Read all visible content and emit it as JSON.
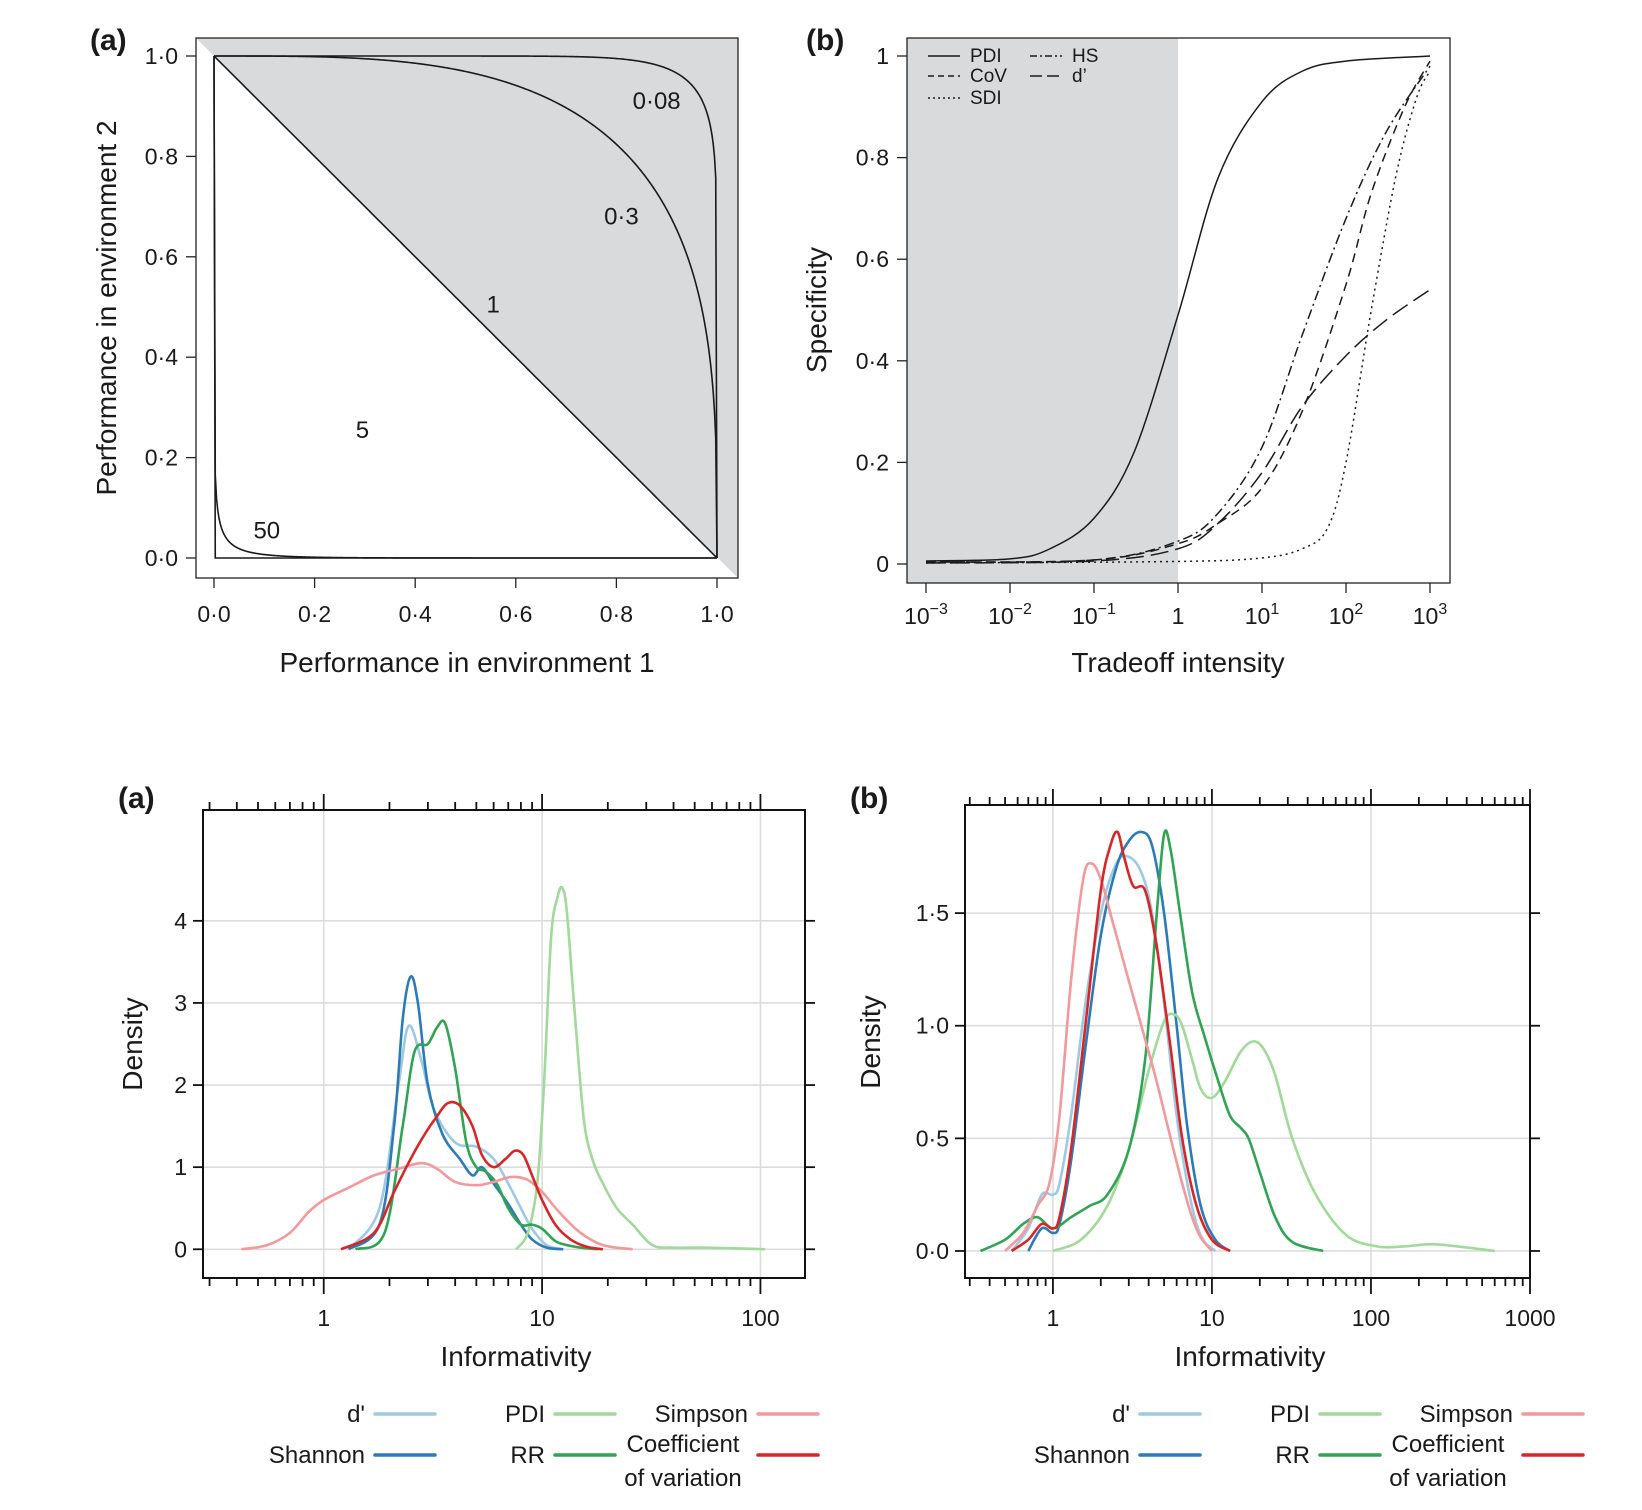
{
  "chart_data": [
    {
      "panel_label": "(a)",
      "type": "line",
      "xlabel": "Performance in environment 1",
      "ylabel": "Performance in environment 2",
      "xlim": [
        0,
        1
      ],
      "ylim": [
        0,
        1
      ],
      "xticks": [
        "0·0",
        "0·2",
        "0·4",
        "0·6",
        "0·8",
        "1·0"
      ],
      "yticks": [
        "0·0",
        "0·2",
        "0·4",
        "0·6",
        "0·8",
        "1·0"
      ],
      "shaded_region": "above the 1:1 diagonal",
      "shade_color": "#d9dadc",
      "curves": [
        {
          "label": "0·08",
          "exponent": 0.08,
          "label_at": [
            0.88,
            0.91
          ]
        },
        {
          "label": "0·3",
          "exponent": 0.3,
          "label_at": [
            0.81,
            0.68
          ]
        },
        {
          "label": "1",
          "exponent": 1,
          "label_at": [
            0.555,
            0.505
          ]
        },
        {
          "label": "5",
          "exponent": 5,
          "label_at": [
            0.295,
            0.255
          ]
        },
        {
          "label": "50",
          "exponent": 50,
          "label_at": [
            0.105,
            0.055
          ]
        }
      ]
    },
    {
      "panel_label": "(b)",
      "type": "line",
      "xlabel": "Tradeoff intensity",
      "ylabel": "Specificity",
      "xscale": "log",
      "xlim": [
        0.001,
        1000
      ],
      "ylim": [
        0,
        1
      ],
      "xticks": [
        {
          "base": "10",
          "exp": "−3"
        },
        {
          "base": "10",
          "exp": "−2"
        },
        {
          "base": "10",
          "exp": "−1"
        },
        {
          "base": "1",
          "exp": ""
        },
        {
          "base": "10",
          "exp": "1"
        },
        {
          "base": "10",
          "exp": "2"
        },
        {
          "base": "10",
          "exp": "3"
        }
      ],
      "yticks": [
        "0",
        "0·2",
        "0·4",
        "0·6",
        "0·8",
        "1"
      ],
      "shaded_region": "tradeoff intensity below 1",
      "shade_color": "#d9dadc",
      "legend_position": "top-left",
      "series": [
        {
          "name": "PDI",
          "dash": "solid",
          "x": [
            0.001,
            0.01,
            0.03,
            0.1,
            0.3,
            1,
            3,
            10,
            30,
            100,
            1000
          ],
          "y": [
            0.006,
            0.01,
            0.03,
            0.09,
            0.22,
            0.49,
            0.76,
            0.91,
            0.97,
            0.99,
            1.0
          ]
        },
        {
          "name": "CoV",
          "dash": "dashed",
          "x": [
            0.001,
            0.1,
            1,
            3,
            10,
            30,
            100,
            200,
            500,
            1000
          ],
          "y": [
            0.004,
            0.008,
            0.04,
            0.08,
            0.15,
            0.3,
            0.55,
            0.73,
            0.9,
            0.99
          ]
        },
        {
          "name": "SDI",
          "dash": "dotted",
          "x": [
            0.001,
            1,
            10,
            30,
            60,
            100,
            200,
            400,
            700,
            1000
          ],
          "y": [
            0.002,
            0.005,
            0.012,
            0.03,
            0.07,
            0.2,
            0.5,
            0.77,
            0.92,
            0.97
          ]
        },
        {
          "name": "HS",
          "dash": "dash-dot",
          "x": [
            0.001,
            0.1,
            1,
            3,
            10,
            30,
            100,
            300,
            1000
          ],
          "y": [
            0.004,
            0.008,
            0.045,
            0.1,
            0.23,
            0.45,
            0.68,
            0.85,
            0.98
          ]
        },
        {
          "name": "d’",
          "dash": "long-dash",
          "x": [
            0.001,
            0.1,
            1,
            3,
            10,
            30,
            100,
            300,
            1000
          ],
          "y": [
            0.002,
            0.006,
            0.03,
            0.08,
            0.18,
            0.31,
            0.41,
            0.48,
            0.54
          ]
        }
      ]
    },
    {
      "panel_label": "(a)",
      "type": "line",
      "xlabel": "Informativity",
      "ylabel": "Density",
      "xscale": "log",
      "xlim": [
        0.28,
        160
      ],
      "ylim": [
        -0.35,
        5.35
      ],
      "grid": true,
      "xticks": [
        "1",
        "10",
        "100"
      ],
      "yticks": [
        "0",
        "1",
        "2",
        "3",
        "4"
      ],
      "legend_position": "bottom",
      "series": [
        {
          "name": "d'",
          "color": "#9ecae1",
          "x": [
            1.3,
            1.8,
            2.2,
            2.45,
            2.8,
            3.2,
            4.0,
            5.0,
            6.0,
            7.0,
            8.0,
            9.0,
            10.5,
            12.5
          ],
          "y": [
            0,
            0.5,
            2.0,
            2.72,
            2.3,
            1.7,
            1.3,
            1.25,
            1.1,
            0.8,
            0.5,
            0.25,
            0.05,
            0
          ]
        },
        {
          "name": "Shannon",
          "color": "#2c7bb6",
          "x": [
            1.3,
            1.8,
            2.1,
            2.3,
            2.5,
            2.7,
            3.0,
            3.5,
            4.2,
            4.8,
            5.3,
            6.0,
            7.0,
            8.0,
            9.0,
            10.5,
            12.5
          ],
          "y": [
            0,
            0.3,
            1.5,
            2.8,
            3.32,
            3.0,
            2.0,
            1.4,
            1.1,
            0.9,
            1.0,
            0.8,
            0.55,
            0.3,
            0.12,
            0.02,
            0
          ]
        },
        {
          "name": "PDI",
          "color": "#a1d99b",
          "x": [
            7.6,
            8.6,
            9.5,
            10.2,
            11.0,
            11.8,
            12.4,
            13.0,
            14.0,
            15.5,
            17.0,
            19.0,
            22.0,
            26.0,
            32.0,
            40.0,
            55.0,
            80.0,
            105.0
          ],
          "y": [
            0,
            0.2,
            0.8,
            2.0,
            3.8,
            4.3,
            4.4,
            4.1,
            3.0,
            1.6,
            1.1,
            0.8,
            0.5,
            0.3,
            0.05,
            0.02,
            0.02,
            0.01,
            0
          ]
        },
        {
          "name": "RR",
          "color": "#31a354",
          "x": [
            1.4,
            1.9,
            2.3,
            2.6,
            3.0,
            3.3,
            3.6,
            4.0,
            4.5,
            5.0,
            5.5,
            6.2,
            7.0,
            8.0,
            9.0,
            10.0,
            11.5,
            13.0,
            15.0,
            18.0
          ],
          "y": [
            0,
            0.2,
            1.5,
            2.4,
            2.5,
            2.7,
            2.75,
            2.2,
            1.3,
            1.0,
            0.95,
            0.8,
            0.5,
            0.3,
            0.3,
            0.25,
            0.1,
            0.05,
            0.02,
            0
          ]
        },
        {
          "name": "Simpson",
          "color": "#f1999c",
          "x": [
            0.42,
            0.55,
            0.7,
            0.85,
            1.0,
            1.3,
            1.7,
            2.2,
            2.8,
            3.3,
            4.0,
            5.0,
            6.0,
            7.2,
            8.5,
            10.0,
            12.0,
            15.0,
            19.0,
            26.0
          ],
          "y": [
            0,
            0.05,
            0.2,
            0.45,
            0.6,
            0.75,
            0.9,
            0.98,
            1.05,
            0.98,
            0.82,
            0.78,
            0.82,
            0.88,
            0.85,
            0.7,
            0.45,
            0.2,
            0.05,
            0
          ]
        },
        {
          "name": "Coefficient of variation",
          "color": "#d62728",
          "x": [
            1.2,
            1.7,
            2.1,
            2.5,
            2.9,
            3.3,
            3.7,
            4.2,
            4.8,
            5.3,
            6.0,
            6.8,
            7.5,
            8.2,
            9.0,
            10.0,
            11.5,
            13.5,
            16.0,
            19.0
          ],
          "y": [
            0,
            0.2,
            0.7,
            1.1,
            1.4,
            1.62,
            1.78,
            1.75,
            1.5,
            1.15,
            1.0,
            1.1,
            1.2,
            1.15,
            0.9,
            0.6,
            0.3,
            0.12,
            0.03,
            0
          ]
        }
      ],
      "legend": {
        "col1": [
          {
            "label": "d'",
            "series": 0
          },
          {
            "label": "Shannon",
            "series": 1
          }
        ],
        "col2": [
          {
            "label": "PDI",
            "series": 2
          },
          {
            "label": "RR",
            "series": 3
          }
        ],
        "col3": [
          {
            "label": "Simpson",
            "series": 4
          },
          {
            "label": "Coefficient",
            "label2": "of variation",
            "series": 5
          }
        ]
      }
    },
    {
      "panel_label": "(b)",
      "type": "line",
      "xlabel": "Informativity",
      "ylabel": "Density",
      "xscale": "log",
      "xlim": [
        0.28,
        1000
      ],
      "ylim": [
        -0.12,
        1.98
      ],
      "grid": true,
      "xticks": [
        "1",
        "10",
        "100",
        "1000"
      ],
      "yticks": [
        "0·0",
        "0·5",
        "1·0",
        "1·5"
      ],
      "legend_position": "bottom",
      "series": [
        {
          "name": "d'",
          "color": "#9ecae1",
          "x": [
            0.55,
            0.7,
            0.85,
            1.0,
            1.1,
            1.3,
            1.6,
            2.0,
            2.5,
            3.0,
            3.6,
            4.2,
            5.0,
            6.0,
            7.0,
            8.0,
            9.0,
            10.5
          ],
          "y": [
            0,
            0.1,
            0.25,
            0.25,
            0.3,
            0.6,
            1.1,
            1.5,
            1.72,
            1.75,
            1.68,
            1.5,
            1.1,
            0.6,
            0.3,
            0.12,
            0.04,
            0
          ]
        },
        {
          "name": "Shannon",
          "color": "#2c7bb6",
          "x": [
            0.7,
            0.85,
            1.0,
            1.1,
            1.3,
            1.6,
            2.0,
            2.5,
            3.0,
            3.6,
            4.2,
            5.0,
            6.0,
            7.0,
            8.5,
            10.5,
            13.0
          ],
          "y": [
            0,
            0.1,
            0.08,
            0.12,
            0.4,
            0.9,
            1.4,
            1.7,
            1.82,
            1.86,
            1.8,
            1.5,
            1.0,
            0.55,
            0.2,
            0.05,
            0
          ]
        },
        {
          "name": "PDI",
          "color": "#a1d99b",
          "x": [
            1.0,
            1.5,
            2.2,
            3.0,
            4.0,
            5.0,
            5.8,
            6.5,
            7.5,
            8.5,
            10.0,
            12.0,
            15.0,
            18.0,
            21.0,
            25.0,
            32.0,
            45.0,
            70.0,
            110.0,
            160.0,
            240.0,
            350.0,
            600.0
          ],
          "y": [
            0,
            0.05,
            0.2,
            0.45,
            0.8,
            1.02,
            1.05,
            1.0,
            0.85,
            0.72,
            0.68,
            0.75,
            0.88,
            0.93,
            0.9,
            0.78,
            0.5,
            0.25,
            0.07,
            0.02,
            0.02,
            0.03,
            0.02,
            0
          ]
        },
        {
          "name": "RR",
          "color": "#31a354",
          "x": [
            0.35,
            0.5,
            0.65,
            0.8,
            1.0,
            1.3,
            1.7,
            2.2,
            3.0,
            3.8,
            4.5,
            5.0,
            5.5,
            6.3,
            7.5,
            9.0,
            11.0,
            13.0,
            15.0,
            17.0,
            20.0,
            25.0,
            32.0,
            50.0
          ],
          "y": [
            0,
            0.05,
            0.12,
            0.15,
            0.1,
            0.15,
            0.2,
            0.25,
            0.45,
            0.85,
            1.5,
            1.85,
            1.78,
            1.5,
            1.15,
            0.95,
            0.75,
            0.6,
            0.55,
            0.5,
            0.35,
            0.15,
            0.04,
            0
          ]
        },
        {
          "name": "Simpson",
          "color": "#f1999c",
          "x": [
            0.5,
            0.65,
            0.8,
            0.95,
            1.1,
            1.3,
            1.55,
            1.75,
            2.0,
            2.4,
            3.0,
            3.6,
            4.5,
            5.5,
            6.5,
            7.5,
            8.5,
            10.0
          ],
          "y": [
            0,
            0.08,
            0.2,
            0.3,
            0.6,
            1.2,
            1.65,
            1.72,
            1.65,
            1.45,
            1.2,
            1.0,
            0.75,
            0.5,
            0.3,
            0.15,
            0.06,
            0
          ]
        },
        {
          "name": "Coefficient of variation",
          "color": "#d62728",
          "x": [
            0.55,
            0.7,
            0.85,
            1.0,
            1.1,
            1.3,
            1.6,
            2.0,
            2.3,
            2.55,
            2.8,
            3.2,
            3.8,
            4.5,
            5.5,
            6.5,
            8.0,
            10.0,
            13.0
          ],
          "y": [
            0,
            0.05,
            0.12,
            0.1,
            0.15,
            0.45,
            1.0,
            1.6,
            1.8,
            1.86,
            1.75,
            1.62,
            1.6,
            1.35,
            0.9,
            0.5,
            0.2,
            0.05,
            0
          ]
        }
      ],
      "legend": {
        "col1": [
          {
            "label": "d'",
            "series": 0
          },
          {
            "label": "Shannon",
            "series": 1
          }
        ],
        "col2": [
          {
            "label": "PDI",
            "series": 2
          },
          {
            "label": "RR",
            "series": 3
          }
        ],
        "col3": [
          {
            "label": "Simpson",
            "series": 4
          },
          {
            "label": "Coefficient",
            "label2": "of variation",
            "series": 5
          }
        ]
      }
    }
  ]
}
